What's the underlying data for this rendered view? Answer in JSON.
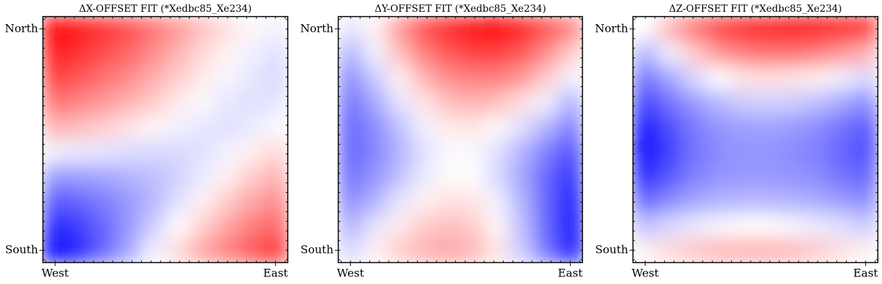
{
  "chart_data": [
    {
      "type": "heatmap",
      "title": "ΔX-OFFSET FIT (*Xedbc85_Xe234)",
      "x": [
        "West",
        null,
        null,
        null,
        null,
        null,
        null,
        null,
        null,
        "East"
      ],
      "y": [
        "North",
        null,
        null,
        null,
        null,
        null,
        null,
        null,
        null,
        "South"
      ],
      "zlim": [
        -1,
        1
      ],
      "colors": [
        "#0000ff",
        "#ffffff",
        "#ff0000"
      ],
      "values": [
        [
          1.0,
          0.9,
          0.8,
          0.7,
          0.55,
          0.4,
          0.25,
          0.12,
          0.03,
          -0.05
        ],
        [
          0.9,
          0.8,
          0.7,
          0.6,
          0.45,
          0.3,
          0.15,
          0.05,
          -0.05,
          -0.12
        ],
        [
          0.75,
          0.65,
          0.55,
          0.45,
          0.32,
          0.2,
          0.08,
          -0.03,
          -0.1,
          -0.15
        ],
        [
          0.55,
          0.48,
          0.4,
          0.3,
          0.2,
          0.08,
          -0.02,
          -0.1,
          -0.12,
          -0.1
        ],
        [
          0.3,
          0.25,
          0.18,
          0.1,
          0.03,
          -0.05,
          -0.1,
          -0.12,
          -0.08,
          -0.02
        ],
        [
          -0.05,
          -0.08,
          -0.1,
          -0.13,
          -0.15,
          -0.15,
          -0.12,
          -0.05,
          0.05,
          0.15
        ],
        [
          -0.4,
          -0.38,
          -0.35,
          -0.3,
          -0.25,
          -0.18,
          -0.08,
          0.05,
          0.2,
          0.3
        ],
        [
          -0.65,
          -0.6,
          -0.5,
          -0.4,
          -0.28,
          -0.12,
          0.05,
          0.2,
          0.35,
          0.45
        ],
        [
          -0.85,
          -0.75,
          -0.6,
          -0.4,
          -0.2,
          0.0,
          0.18,
          0.35,
          0.5,
          0.6
        ],
        [
          -1.0,
          -0.85,
          -0.6,
          -0.35,
          -0.05,
          0.15,
          0.35,
          0.5,
          0.65,
          0.8
        ]
      ]
    },
    {
      "type": "heatmap",
      "title": "ΔY-OFFSET FIT (*Xedbc85_Xe234)",
      "x": [
        "West",
        null,
        null,
        null,
        null,
        null,
        null,
        null,
        null,
        "East"
      ],
      "y": [
        "North",
        null,
        null,
        null,
        null,
        null,
        null,
        null,
        null,
        "South"
      ],
      "zlim": [
        -1,
        1
      ],
      "colors": [
        "#0000ff",
        "#ffffff",
        "#ff0000"
      ],
      "values": [
        [
          -0.1,
          0.05,
          0.4,
          0.7,
          0.85,
          0.95,
          1.0,
          0.9,
          0.7,
          0.5
        ],
        [
          -0.3,
          -0.05,
          0.25,
          0.5,
          0.65,
          0.75,
          0.75,
          0.65,
          0.45,
          0.2
        ],
        [
          -0.45,
          -0.2,
          0.05,
          0.3,
          0.45,
          0.5,
          0.5,
          0.4,
          0.2,
          -0.05
        ],
        [
          -0.55,
          -0.35,
          -0.1,
          0.1,
          0.25,
          0.3,
          0.25,
          0.12,
          -0.05,
          -0.3
        ],
        [
          -0.6,
          -0.45,
          -0.25,
          -0.05,
          0.08,
          0.1,
          0.02,
          -0.12,
          -0.3,
          -0.5
        ],
        [
          -0.6,
          -0.48,
          -0.3,
          -0.12,
          -0.02,
          -0.02,
          -0.12,
          -0.3,
          -0.5,
          -0.7
        ],
        [
          -0.55,
          -0.42,
          -0.25,
          -0.08,
          0.02,
          0,
          -0.15,
          -0.35,
          -0.6,
          -0.8
        ],
        [
          -0.45,
          -0.3,
          -0.1,
          0.05,
          0.12,
          0.1,
          -0.05,
          -0.3,
          -0.6,
          -0.9
        ],
        [
          -0.3,
          -0.1,
          0.08,
          0.2,
          0.25,
          0.2,
          0.03,
          -0.25,
          -0.6,
          -0.95
        ],
        [
          -0.15,
          0.05,
          0.2,
          0.3,
          0.35,
          0.28,
          0.1,
          -0.2,
          -0.55,
          -0.95
        ]
      ]
    },
    {
      "type": "heatmap",
      "title": "ΔZ-OFFSET FIT (*Xedbc85_Xe234)",
      "x": [
        "West",
        null,
        null,
        null,
        null,
        null,
        null,
        null,
        null,
        "East"
      ],
      "y": [
        "North",
        null,
        null,
        null,
        null,
        null,
        null,
        null,
        null,
        "South"
      ],
      "zlim": [
        -1,
        1
      ],
      "colors": [
        "#0000ff",
        "#ffffff",
        "#ff0000"
      ],
      "values": [
        [
          0,
          0.3,
          0.55,
          0.75,
          0.85,
          0.9,
          0.95,
          0.95,
          0.9,
          0.85
        ],
        [
          -0.3,
          -0.05,
          0.2,
          0.4,
          0.5,
          0.55,
          0.55,
          0.5,
          0.4,
          0.3
        ],
        [
          -0.55,
          -0.35,
          -0.15,
          0,
          0.1,
          0.12,
          0.1,
          0.05,
          -0.05,
          -0.15
        ],
        [
          -0.75,
          -0.55,
          -0.4,
          -0.28,
          -0.2,
          -0.18,
          -0.2,
          -0.25,
          -0.35,
          -0.45
        ],
        [
          -0.95,
          -0.7,
          -0.52,
          -0.42,
          -0.38,
          -0.37,
          -0.4,
          -0.45,
          -0.55,
          -0.65
        ],
        [
          -1.0,
          -0.75,
          -0.55,
          -0.45,
          -0.42,
          -0.42,
          -0.45,
          -0.5,
          -0.6,
          -0.7
        ],
        [
          -0.85,
          -0.65,
          -0.5,
          -0.42,
          -0.4,
          -0.4,
          -0.42,
          -0.45,
          -0.55,
          -0.6
        ],
        [
          -0.6,
          -0.45,
          -0.35,
          -0.3,
          -0.28,
          -0.28,
          -0.3,
          -0.33,
          -0.38,
          -0.45
        ],
        [
          -0.25,
          -0.15,
          -0.08,
          -0.03,
          0,
          0,
          -0.03,
          -0.08,
          -0.12,
          -0.2
        ],
        [
          0.05,
          0.15,
          0.22,
          0.28,
          0.3,
          0.3,
          0.27,
          0.2,
          0.12,
          0.05
        ]
      ]
    }
  ]
}
